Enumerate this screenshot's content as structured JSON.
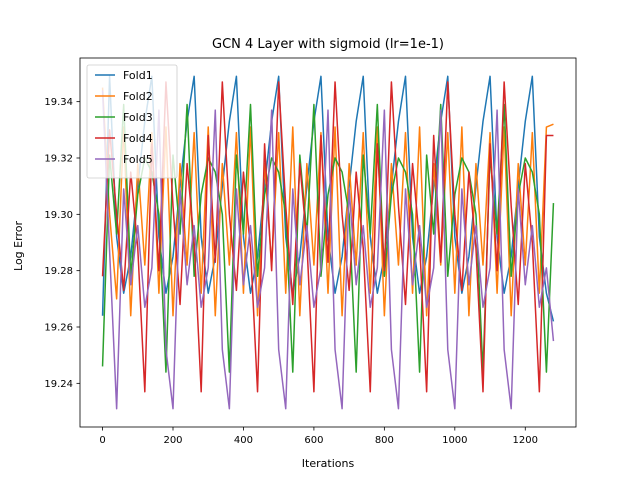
{
  "chart_data": {
    "type": "line",
    "title": "GCN 4 Layer with sigmoid (lr=1e-1)",
    "xlabel": "Iterations",
    "ylabel": "Log Error",
    "xlim": [
      -64,
      1344
    ],
    "ylim": [
      19.2245,
      19.3555
    ],
    "xticks": [
      0,
      200,
      400,
      600,
      800,
      1000,
      1200
    ],
    "yticks": [
      19.24,
      19.26,
      19.28,
      19.3,
      19.32,
      19.34
    ],
    "ytick_labels": [
      "19.24",
      "19.26",
      "19.28",
      "19.30",
      "19.32",
      "19.34"
    ],
    "grid": false,
    "legend_position": "upper-left",
    "x": [
      0,
      20,
      40,
      60,
      80,
      100,
      120,
      140,
      160,
      180,
      200,
      220,
      240,
      260,
      280,
      300,
      320,
      340,
      360,
      380,
      400,
      420,
      440,
      460,
      480,
      500,
      520,
      540,
      560,
      580,
      600,
      620,
      640,
      660,
      680,
      700,
      720,
      740,
      760,
      780,
      800,
      820,
      840,
      860,
      880,
      900,
      920,
      940,
      960,
      980,
      1000,
      1020,
      1040,
      1060,
      1080,
      1100,
      1120,
      1140,
      1160,
      1180,
      1200,
      1220,
      1240,
      1260,
      1280
    ],
    "series": [
      {
        "name": "Fold1",
        "color": "#1f77b4",
        "values": [
          19.264,
          19.349,
          19.292,
          19.272,
          19.285,
          19.31,
          19.333,
          19.349,
          19.292,
          19.272,
          19.285,
          19.31,
          19.333,
          19.349,
          19.292,
          19.272,
          19.285,
          19.31,
          19.333,
          19.349,
          19.292,
          19.272,
          19.285,
          19.31,
          19.333,
          19.349,
          19.292,
          19.272,
          19.285,
          19.31,
          19.333,
          19.349,
          19.292,
          19.272,
          19.285,
          19.31,
          19.333,
          19.349,
          19.292,
          19.272,
          19.285,
          19.31,
          19.333,
          19.349,
          19.292,
          19.272,
          19.285,
          19.31,
          19.333,
          19.349,
          19.292,
          19.272,
          19.285,
          19.31,
          19.333,
          19.349,
          19.292,
          19.272,
          19.285,
          19.31,
          19.333,
          19.349,
          19.292,
          19.272,
          19.262
        ]
      },
      {
        "name": "Fold2",
        "color": "#ff7f0e",
        "values": [
          19.345,
          19.3,
          19.27,
          19.331,
          19.264,
          19.318,
          19.282,
          19.329,
          19.272,
          19.331,
          19.264,
          19.318,
          19.282,
          19.329,
          19.272,
          19.331,
          19.264,
          19.318,
          19.282,
          19.329,
          19.272,
          19.331,
          19.264,
          19.318,
          19.282,
          19.329,
          19.272,
          19.331,
          19.264,
          19.318,
          19.282,
          19.329,
          19.272,
          19.331,
          19.264,
          19.318,
          19.282,
          19.329,
          19.272,
          19.331,
          19.264,
          19.318,
          19.282,
          19.329,
          19.272,
          19.331,
          19.264,
          19.318,
          19.282,
          19.329,
          19.272,
          19.331,
          19.264,
          19.318,
          19.282,
          19.329,
          19.272,
          19.331,
          19.264,
          19.318,
          19.282,
          19.329,
          19.272,
          19.331,
          19.332
        ]
      },
      {
        "name": "Fold3",
        "color": "#2ca02c",
        "values": [
          19.246,
          19.321,
          19.293,
          19.339,
          19.278,
          19.307,
          19.32,
          19.315,
          19.3,
          19.244,
          19.321,
          19.293,
          19.339,
          19.278,
          19.307,
          19.32,
          19.315,
          19.3,
          19.244,
          19.321,
          19.293,
          19.339,
          19.278,
          19.307,
          19.32,
          19.315,
          19.3,
          19.244,
          19.321,
          19.293,
          19.339,
          19.278,
          19.307,
          19.32,
          19.315,
          19.3,
          19.244,
          19.321,
          19.293,
          19.339,
          19.278,
          19.307,
          19.32,
          19.315,
          19.3,
          19.244,
          19.321,
          19.293,
          19.339,
          19.278,
          19.307,
          19.32,
          19.315,
          19.3,
          19.244,
          19.321,
          19.293,
          19.339,
          19.278,
          19.307,
          19.32,
          19.315,
          19.3,
          19.244,
          19.304
        ]
      },
      {
        "name": "Fold4",
        "color": "#d62728",
        "values": [
          19.278,
          19.33,
          19.3,
          19.273,
          19.315,
          19.288,
          19.237,
          19.325,
          19.28,
          19.347,
          19.303,
          19.268,
          19.318,
          19.29,
          19.237,
          19.328,
          19.283,
          19.347,
          19.3,
          19.273,
          19.315,
          19.288,
          19.237,
          19.325,
          19.28,
          19.347,
          19.303,
          19.268,
          19.318,
          19.29,
          19.237,
          19.328,
          19.283,
          19.347,
          19.3,
          19.273,
          19.315,
          19.288,
          19.237,
          19.325,
          19.28,
          19.347,
          19.303,
          19.268,
          19.318,
          19.29,
          19.237,
          19.328,
          19.283,
          19.347,
          19.3,
          19.273,
          19.315,
          19.288,
          19.237,
          19.325,
          19.28,
          19.347,
          19.303,
          19.268,
          19.318,
          19.29,
          19.237,
          19.328,
          19.328
        ]
      },
      {
        "name": "Fold5",
        "color": "#9467bd",
        "values": [
          19.344,
          19.287,
          19.231,
          19.309,
          19.275,
          19.296,
          19.267,
          19.281,
          19.337,
          19.252,
          19.231,
          19.309,
          19.275,
          19.296,
          19.267,
          19.281,
          19.337,
          19.252,
          19.231,
          19.309,
          19.275,
          19.296,
          19.267,
          19.281,
          19.337,
          19.252,
          19.231,
          19.309,
          19.275,
          19.296,
          19.267,
          19.281,
          19.337,
          19.252,
          19.231,
          19.309,
          19.275,
          19.296,
          19.267,
          19.281,
          19.337,
          19.252,
          19.231,
          19.309,
          19.275,
          19.296,
          19.267,
          19.281,
          19.337,
          19.252,
          19.231,
          19.309,
          19.275,
          19.296,
          19.267,
          19.281,
          19.337,
          19.252,
          19.231,
          19.309,
          19.275,
          19.296,
          19.267,
          19.281,
          19.255
        ]
      }
    ]
  }
}
